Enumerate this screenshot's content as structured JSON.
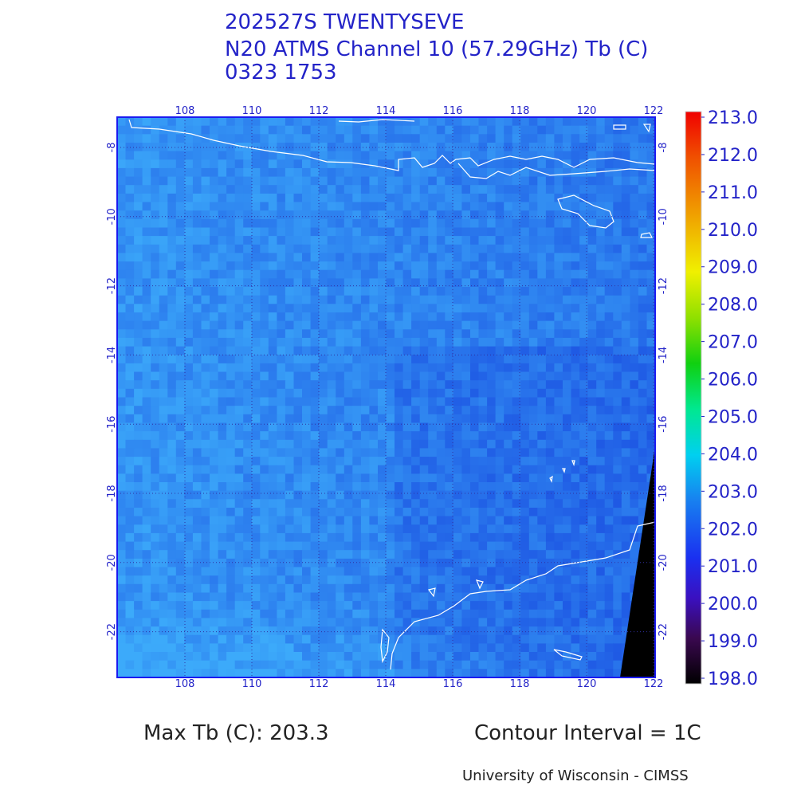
{
  "header": {
    "lines": [
      "202527S TWENTYSEVE",
      "N20 ATMS Channel 10 (57.29GHz) Tb (C)",
      "0323 1753"
    ]
  },
  "map": {
    "lon_ticks": [
      108,
      110,
      112,
      114,
      116,
      118,
      120,
      122
    ],
    "lat_ticks": [
      -8,
      -10,
      -12,
      -14,
      -16,
      -18,
      -20,
      -22
    ]
  },
  "colorbar": {
    "ticks": [
      {
        "value": 213,
        "label": "213.0"
      },
      {
        "value": 212,
        "label": "212.0"
      },
      {
        "value": 211,
        "label": "211.0"
      },
      {
        "value": 210,
        "label": "210.0"
      },
      {
        "value": 209,
        "label": "209.0"
      },
      {
        "value": 208,
        "label": "208.0"
      },
      {
        "value": 207,
        "label": "207.0"
      },
      {
        "value": 206,
        "label": "206.0"
      },
      {
        "value": 205,
        "label": "205.0"
      },
      {
        "value": 204,
        "label": "204.0"
      },
      {
        "value": 203,
        "label": "203.0"
      },
      {
        "value": 202,
        "label": "202.0"
      },
      {
        "value": 201,
        "label": "201.0"
      },
      {
        "value": 200,
        "label": "200.0"
      },
      {
        "value": 199,
        "label": "199.0"
      },
      {
        "value": 198,
        "label": "198.0"
      }
    ]
  },
  "footer": {
    "max": "Max Tb (C): 203.3",
    "contour": "Contour Interval = 1C",
    "credit": "University of Wisconsin - CIMSS"
  }
}
